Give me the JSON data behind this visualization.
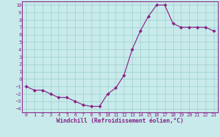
{
  "x": [
    0,
    1,
    2,
    3,
    4,
    5,
    6,
    7,
    8,
    9,
    10,
    11,
    12,
    13,
    14,
    15,
    16,
    17,
    18,
    19,
    20,
    21,
    22,
    23
  ],
  "y": [
    -1,
    -1.5,
    -1.5,
    -2,
    -2.5,
    -2.5,
    -3,
    -3.5,
    -3.7,
    -3.7,
    -2,
    -1.2,
    0.5,
    4,
    6.5,
    8.5,
    10,
    10,
    7.5,
    7,
    7,
    7,
    7,
    6.5
  ],
  "line_color": "#882288",
  "marker": "D",
  "marker_size": 2.2,
  "bg_color": "#c8eaea",
  "grid_color": "#99cccc",
  "xlabel": "Windchill (Refroidissement éolien,°C)",
  "xlim": [
    -0.5,
    23.5
  ],
  "ylim": [
    -4.5,
    10.5
  ],
  "yticks": [
    -4,
    -3,
    -2,
    -1,
    0,
    1,
    2,
    3,
    4,
    5,
    6,
    7,
    8,
    9,
    10
  ],
  "xticks": [
    0,
    1,
    2,
    3,
    4,
    5,
    6,
    7,
    8,
    9,
    10,
    11,
    12,
    13,
    14,
    15,
    16,
    17,
    18,
    19,
    20,
    21,
    22,
    23
  ],
  "tick_color": "#882288",
  "tick_size": 5.0,
  "xlabel_size": 6.0,
  "line_width": 0.9,
  "spine_color": "#882288"
}
